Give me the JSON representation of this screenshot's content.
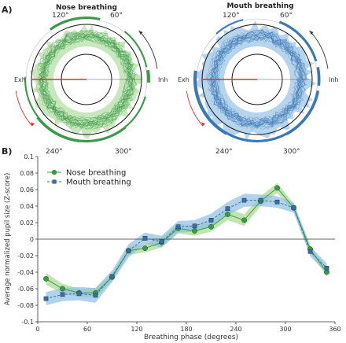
{
  "panels": {
    "a_label": "A)",
    "b_label": "B)"
  },
  "polar": [
    {
      "title": "Nose breathing",
      "color": "#3a9a48",
      "fill": "#bfe3b0",
      "angle_labels": [
        "120°",
        "60°",
        "240°",
        "300°"
      ],
      "side_labels": {
        "left": "Exh",
        "right": "Inh"
      }
    },
    {
      "title": "Mouth breathing",
      "color": "#3a78b5",
      "fill": "#a9cdea",
      "angle_labels": [
        "120°",
        "60°",
        "240°",
        "300°"
      ],
      "side_labels": {
        "left": "Exh",
        "right": "Inh"
      }
    }
  ],
  "chart_data": {
    "type": "line",
    "xlabel": "Breathing phase (degrees)",
    "ylabel": "Average normalized pupil size (Z-score)",
    "xlim": [
      0,
      360
    ],
    "ylim": [
      -0.1,
      0.1
    ],
    "xticks": [
      0,
      60,
      120,
      180,
      240,
      300,
      360
    ],
    "yticks": [
      -0.1,
      -0.08,
      -0.06,
      -0.04,
      -0.02,
      0,
      0.02,
      0.04,
      0.06,
      0.08,
      0.1
    ],
    "ytick_labels": [
      "-0.1",
      "-0.08",
      "-0.06",
      "-0.04",
      "-0.02",
      "0",
      "0.02",
      "0.04",
      "0.06",
      "0.08",
      "0.1"
    ],
    "legend": "top-left",
    "x": [
      10,
      30,
      50,
      70,
      90,
      110,
      130,
      150,
      170,
      190,
      210,
      230,
      250,
      270,
      290,
      310,
      330,
      350
    ],
    "series": [
      {
        "name": "Nose breathing",
        "style": "solid-circle",
        "color": "#3a9a48",
        "band": "#a8d98f",
        "values": [
          -0.048,
          -0.06,
          -0.065,
          -0.065,
          -0.046,
          -0.014,
          -0.011,
          -0.004,
          0.013,
          0.01,
          0.015,
          0.03,
          0.023,
          0.046,
          0.062,
          0.038,
          -0.012,
          -0.04
        ],
        "err": [
          0.007,
          0.006,
          0.005,
          0.006,
          0.005,
          0.005,
          0.005,
          0.006,
          0.006,
          0.006,
          0.006,
          0.007,
          0.007,
          0.006,
          0.006,
          0.005,
          0.005,
          0.005
        ]
      },
      {
        "name": "Mouth breathing",
        "style": "dashed-square",
        "color": "#3a6e9e",
        "band": "#8fc1e3",
        "values": [
          -0.072,
          -0.067,
          -0.066,
          -0.068,
          -0.045,
          -0.014,
          0.001,
          -0.003,
          0.015,
          0.016,
          0.023,
          0.037,
          0.047,
          0.047,
          0.045,
          0.038,
          -0.015,
          -0.035
        ],
        "err": [
          0.008,
          0.008,
          0.008,
          0.009,
          0.007,
          0.008,
          0.007,
          0.007,
          0.007,
          0.007,
          0.008,
          0.008,
          0.008,
          0.007,
          0.007,
          0.006,
          0.006,
          0.006
        ]
      }
    ]
  }
}
